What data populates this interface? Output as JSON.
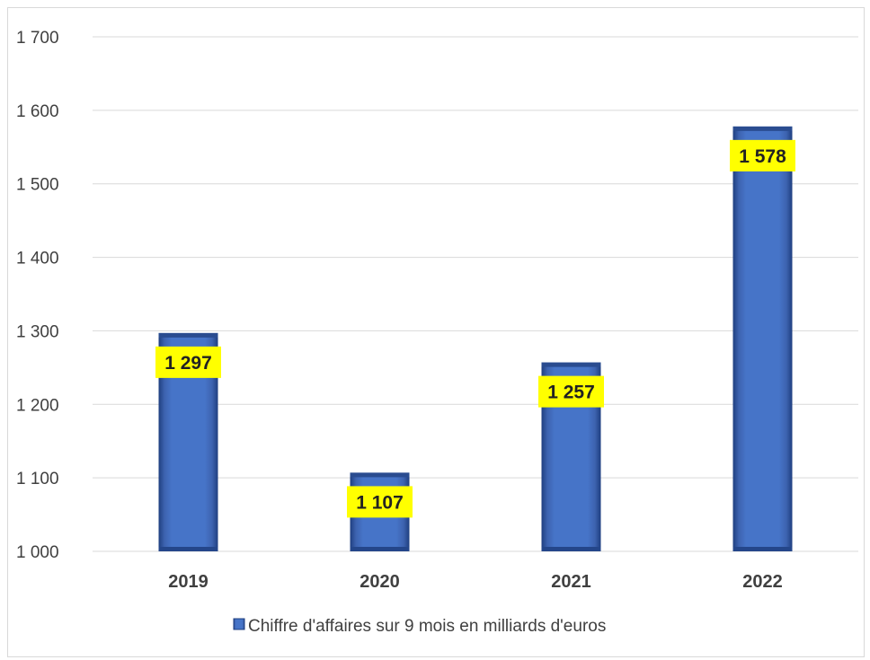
{
  "chart_data": {
    "type": "bar",
    "categories": [
      "2019",
      "2020",
      "2021",
      "2022"
    ],
    "series": [
      {
        "name": "Chiffre d'affaires sur 9 mois en milliards d'euros",
        "values": [
          1297,
          1107,
          1257,
          1578
        ],
        "data_labels": [
          "1 297",
          "1 107",
          "1 257",
          "1 578"
        ]
      }
    ],
    "ylim": [
      1000,
      1700
    ],
    "yticks": [
      1000,
      1100,
      1200,
      1300,
      1400,
      1500,
      1600,
      1700
    ],
    "ytick_labels": [
      "1 000",
      "1 100",
      "1 200",
      "1 300",
      "1 400",
      "1 500",
      "1 600",
      "1 700"
    ],
    "title": "",
    "xlabel": "",
    "ylabel": "",
    "grid": true,
    "legend_position": "bottom",
    "colors": {
      "bar": "#4472C4",
      "bar_dark": "#1F3F80",
      "label_background": "#FFFF00",
      "gridline": "#D9D9D9",
      "axis_text": "#404040"
    }
  }
}
